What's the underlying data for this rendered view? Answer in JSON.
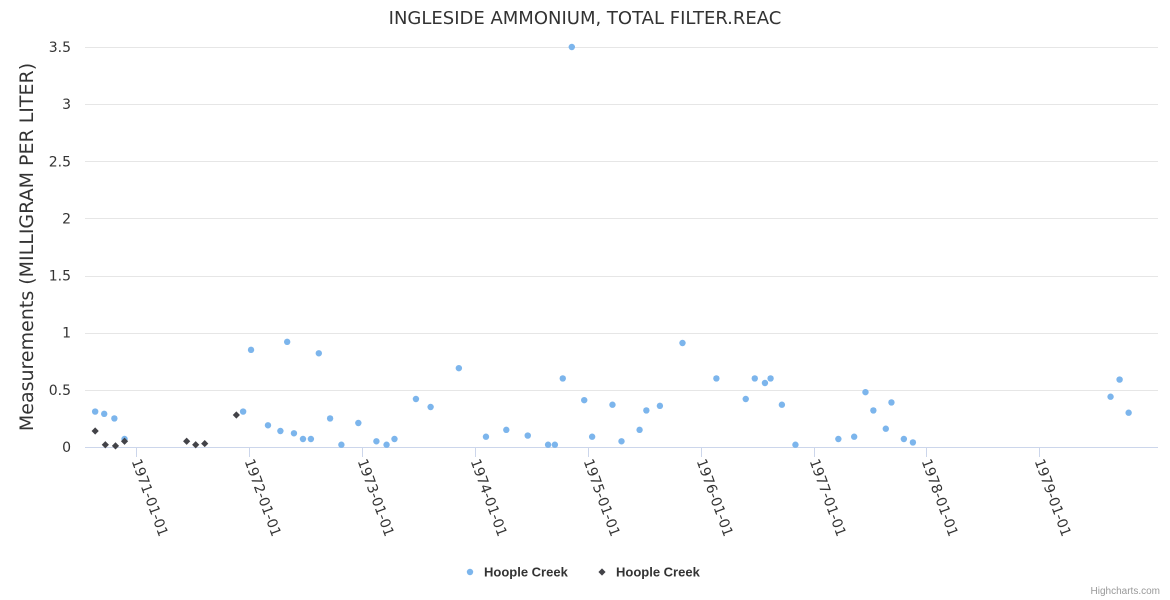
{
  "chart_data": {
    "type": "scatter",
    "title": "INGLESIDE AMMONIUM, TOTAL FILTER.REAC",
    "xlabel": "",
    "ylabel": "Measurements (MILLIGRAM PER LITER)",
    "xlim": [
      1970.55,
      1980.05
    ],
    "ylim": [
      0,
      3.5
    ],
    "y_ticks": [
      {
        "value": 0,
        "label": "0"
      },
      {
        "value": 0.5,
        "label": "0.5"
      },
      {
        "value": 1,
        "label": "1"
      },
      {
        "value": 1.5,
        "label": "1.5"
      },
      {
        "value": 2,
        "label": "2"
      },
      {
        "value": 2.5,
        "label": "2.5"
      },
      {
        "value": 3,
        "label": "3"
      },
      {
        "value": 3.5,
        "label": "3.5"
      }
    ],
    "x_ticks": [
      {
        "value": 1971,
        "label": "1971-01-01"
      },
      {
        "value": 1972,
        "label": "1972-01-01"
      },
      {
        "value": 1973,
        "label": "1973-01-01"
      },
      {
        "value": 1974,
        "label": "1974-01-01"
      },
      {
        "value": 1975,
        "label": "1975-01-01"
      },
      {
        "value": 1976,
        "label": "1976-01-01"
      },
      {
        "value": 1977,
        "label": "1977-01-01"
      },
      {
        "value": 1978,
        "label": "1978-01-01"
      },
      {
        "value": 1979,
        "label": "1979-01-01"
      }
    ],
    "grid": true,
    "legend_position": "bottom-center",
    "series": [
      {
        "name": "Hoople Creek",
        "marker": "circle",
        "color": "#7cb5ec",
        "points": [
          [
            1970.64,
            0.31
          ],
          [
            1970.72,
            0.29
          ],
          [
            1970.81,
            0.25
          ],
          [
            1970.9,
            0.07
          ],
          [
            1971.95,
            0.31
          ],
          [
            1972.02,
            0.85
          ],
          [
            1972.17,
            0.19
          ],
          [
            1972.28,
            0.14
          ],
          [
            1972.34,
            0.92
          ],
          [
            1972.4,
            0.12
          ],
          [
            1972.48,
            0.07
          ],
          [
            1972.55,
            0.07
          ],
          [
            1972.62,
            0.82
          ],
          [
            1972.72,
            0.25
          ],
          [
            1972.82,
            0.02
          ],
          [
            1972.97,
            0.21
          ],
          [
            1973.13,
            0.05
          ],
          [
            1973.22,
            0.02
          ],
          [
            1973.29,
            0.07
          ],
          [
            1973.48,
            0.42
          ],
          [
            1973.61,
            0.35
          ],
          [
            1973.86,
            0.69
          ],
          [
            1974.1,
            0.09
          ],
          [
            1974.28,
            0.15
          ],
          [
            1974.47,
            0.1
          ],
          [
            1974.65,
            0.02
          ],
          [
            1974.71,
            0.02
          ],
          [
            1974.78,
            0.6
          ],
          [
            1974.86,
            3.5
          ],
          [
            1974.97,
            0.41
          ],
          [
            1975.04,
            0.09
          ],
          [
            1975.22,
            0.37
          ],
          [
            1975.3,
            0.05
          ],
          [
            1975.46,
            0.15
          ],
          [
            1975.52,
            0.32
          ],
          [
            1975.64,
            0.36
          ],
          [
            1975.84,
            0.91
          ],
          [
            1976.14,
            0.6
          ],
          [
            1976.4,
            0.42
          ],
          [
            1976.48,
            0.6
          ],
          [
            1976.57,
            0.56
          ],
          [
            1976.62,
            0.6
          ],
          [
            1976.72,
            0.37
          ],
          [
            1976.84,
            0.02
          ],
          [
            1977.22,
            0.07
          ],
          [
            1977.36,
            0.09
          ],
          [
            1977.46,
            0.48
          ],
          [
            1977.53,
            0.32
          ],
          [
            1977.64,
            0.16
          ],
          [
            1977.69,
            0.39
          ],
          [
            1977.8,
            0.07
          ],
          [
            1977.88,
            0.04
          ],
          [
            1979.63,
            0.44
          ],
          [
            1979.71,
            0.59
          ],
          [
            1979.79,
            0.3
          ]
        ]
      },
      {
        "name": "Hoople Creek",
        "marker": "diamond",
        "color": "#434348",
        "points": [
          [
            1970.64,
            0.14
          ],
          [
            1970.73,
            0.02
          ],
          [
            1970.82,
            0.01
          ],
          [
            1970.9,
            0.05
          ],
          [
            1971.45,
            0.05
          ],
          [
            1971.53,
            0.02
          ],
          [
            1971.61,
            0.03
          ],
          [
            1971.89,
            0.28
          ]
        ]
      }
    ]
  },
  "credit": "Highcharts.com"
}
